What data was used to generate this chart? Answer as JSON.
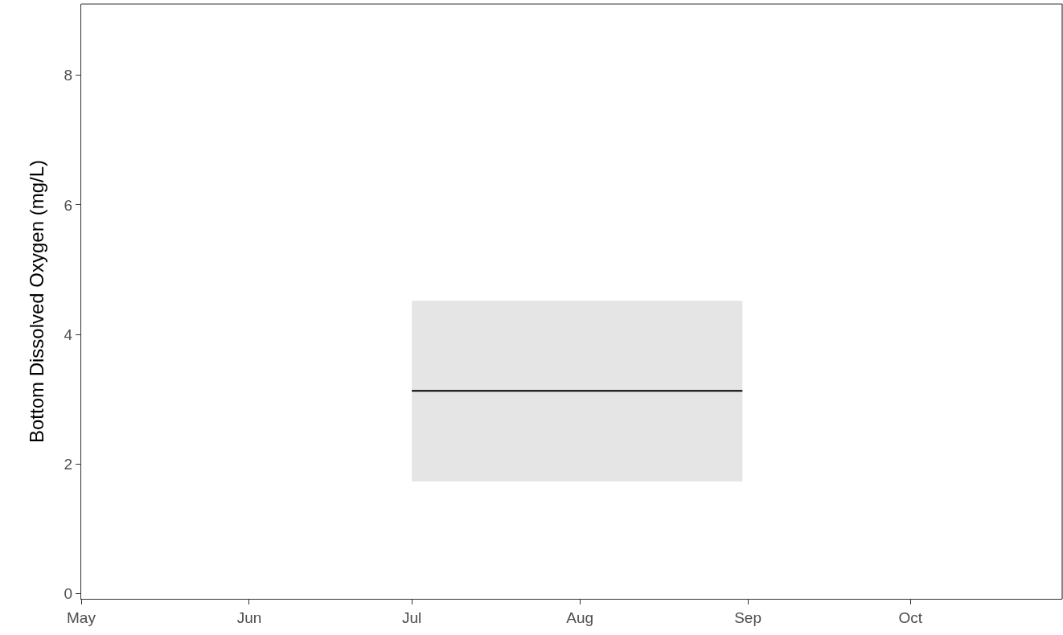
{
  "chart_data": {
    "type": "line",
    "ylabel": "Bottom Dissolved Oxygen (mg/L)",
    "xlim": [
      "--05-01",
      "--10-29"
    ],
    "xticks": [
      {
        "value": "--05-01",
        "label": "May"
      },
      {
        "value": "--06-01",
        "label": "Jun"
      },
      {
        "value": "--07-01",
        "label": "Jul"
      },
      {
        "value": "--08-01",
        "label": "Aug"
      },
      {
        "value": "--09-01",
        "label": "Sep"
      },
      {
        "value": "--10-01",
        "label": "Oct"
      }
    ],
    "ylim": [
      -0.08,
      9.1
    ],
    "yticks": [
      0,
      2,
      4,
      6,
      8
    ],
    "series": [
      {
        "color": "#000000",
        "x": [
          "--07-01",
          "--08-31"
        ],
        "values": [
          3.13,
          3.13
        ],
        "lower": [
          1.73,
          1.73
        ],
        "upper": [
          4.52,
          4.52
        ]
      }
    ],
    "grid": false,
    "line_style": "solid",
    "marker": "none"
  }
}
